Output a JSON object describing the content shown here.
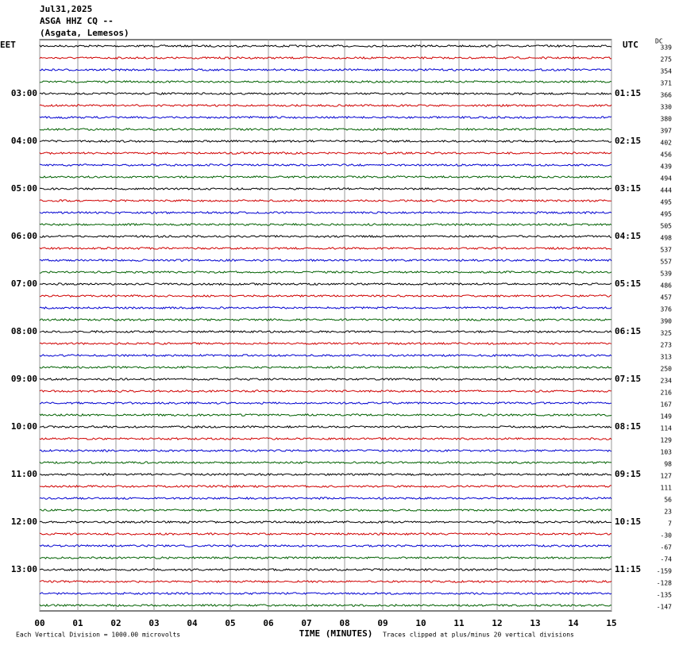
{
  "header": {
    "date": "Jul31,2025",
    "station": "ASGA HHZ CQ --",
    "location": "(Asgata, Lemesos)"
  },
  "left_zone": "EET",
  "right_zone": "UTC",
  "dc_header": "DC",
  "left_labels": [
    "03:00",
    "04:00",
    "05:00",
    "06:00",
    "07:00",
    "08:00",
    "09:00",
    "10:00",
    "11:00",
    "12:00",
    "13:00"
  ],
  "right_labels": [
    "01:15",
    "02:15",
    "03:15",
    "04:15",
    "05:15",
    "06:15",
    "07:15",
    "08:15",
    "09:15",
    "10:15",
    "11:15"
  ],
  "dc_values": [
    339,
    275,
    354,
    371,
    366,
    330,
    380,
    397,
    402,
    456,
    439,
    494,
    444,
    495,
    495,
    505,
    498,
    537,
    557,
    539,
    486,
    457,
    376,
    390,
    325,
    273,
    313,
    250,
    234,
    216,
    167,
    149,
    114,
    129,
    103,
    98,
    127,
    111,
    56,
    23,
    7,
    -30,
    -67,
    -74,
    -159,
    -128,
    -135,
    -147
  ],
  "trace_colors": [
    "#000000",
    "#d00000",
    "#0000d0",
    "#006000"
  ],
  "xticks": [
    {
      "value": 0,
      "label": "00"
    },
    {
      "value": 1,
      "label": "01"
    },
    {
      "value": 2,
      "label": "02"
    },
    {
      "value": 3,
      "label": "03"
    },
    {
      "value": 4,
      "label": "04"
    },
    {
      "value": 5,
      "label": "05"
    },
    {
      "value": 6,
      "label": "06"
    },
    {
      "value": 7,
      "label": "07"
    },
    {
      "value": 8,
      "label": "08"
    },
    {
      "value": 9,
      "label": "09"
    },
    {
      "value": 10,
      "label": "10"
    },
    {
      "value": 11,
      "label": "11"
    },
    {
      "value": 12,
      "label": "12"
    },
    {
      "value": 13,
      "label": "13"
    },
    {
      "value": 14,
      "label": "14"
    },
    {
      "value": 15,
      "label": "15"
    }
  ],
  "xlim": [
    0,
    15
  ],
  "xlabel": "TIME (MINUTES)",
  "footer": {
    "scale": "Each Vertical Division = 1000.00 microvolts",
    "clip": "Traces clipped at plus/minus 20 vertical divisions"
  }
}
